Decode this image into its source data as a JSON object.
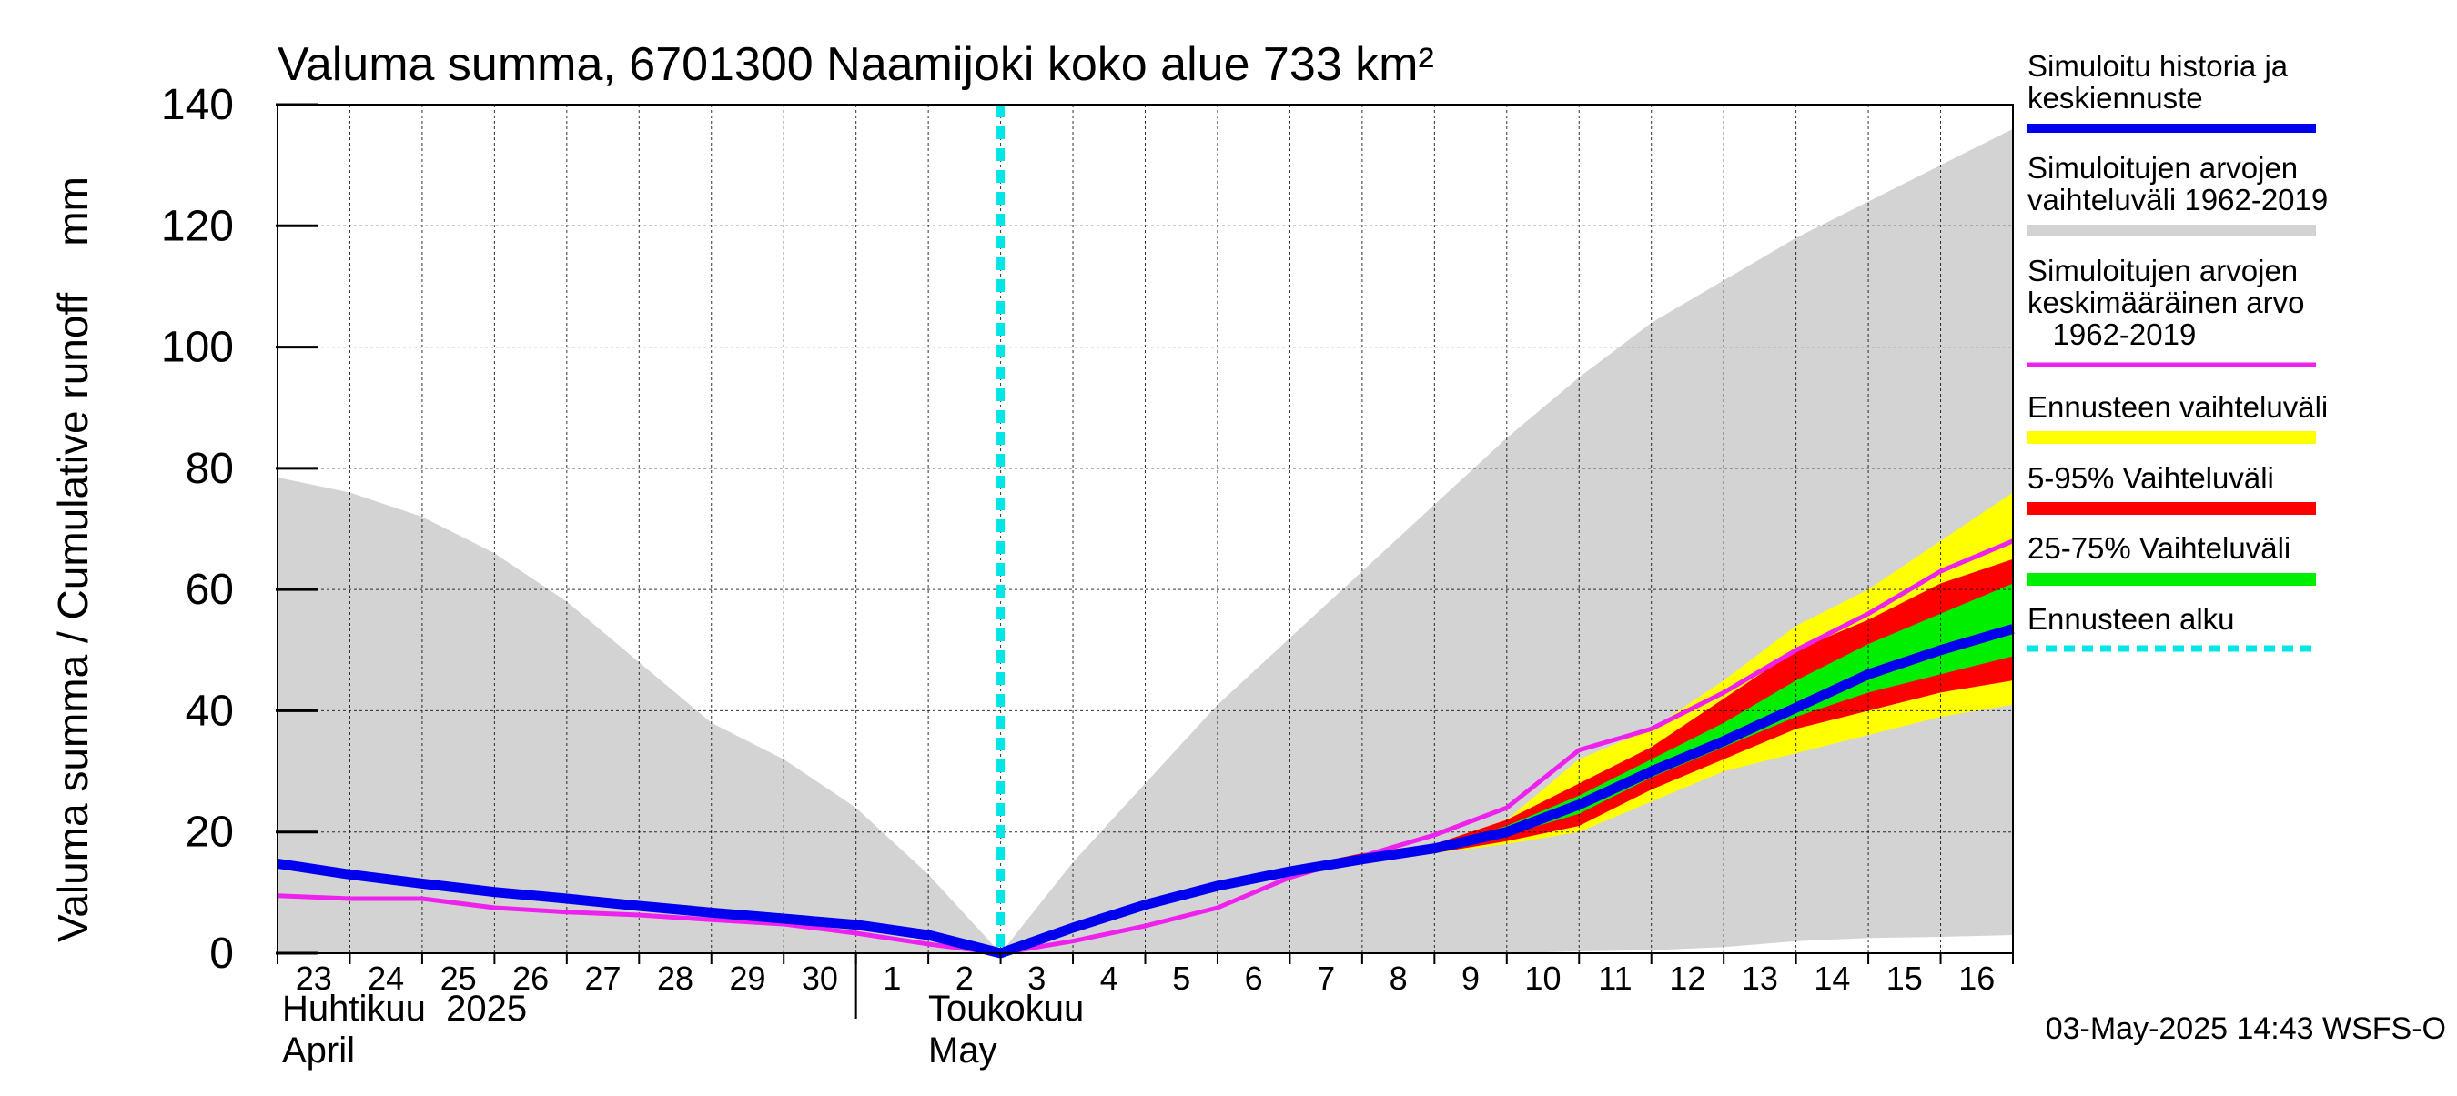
{
  "chart_data": {
    "type": "area",
    "title": "Valuma summa, 6701300 Naamijoki koko alue 733 km²",
    "ylabel": "Valuma summa / Cumulative runoff    mm",
    "ylim": [
      0,
      140
    ],
    "yticks": [
      0,
      20,
      40,
      60,
      80,
      100,
      120,
      140
    ],
    "xlim": [
      0,
      24
    ],
    "x_tick_labels": [
      "23",
      "24",
      "25",
      "26",
      "27",
      "28",
      "29",
      "30",
      "1",
      "2",
      "3",
      "4",
      "5",
      "6",
      "7",
      "8",
      "9",
      "10",
      "11",
      "12",
      "13",
      "14",
      "15",
      "16"
    ],
    "month_labels": [
      {
        "fi": "Huhtikuu  2025",
        "en": "April"
      },
      {
        "fi": "Toukokuu",
        "en": "May"
      }
    ],
    "month_boundary_day_index": 8,
    "forecast_start_day_index": 10,
    "grid": true,
    "legend_position": "right",
    "legend": [
      {
        "key": "history",
        "label": "Simuloitu historia ja keskiennuste",
        "color": "#0000ee"
      },
      {
        "key": "hist_range",
        "label": "Simuloitujen arvojen vaihteluväli 1962-2019",
        "color": "#d3d3d3"
      },
      {
        "key": "hist_mean",
        "label": "Simuloitujen arvojen keskimääräinen arvo    1962-2019",
        "color": "#ee22ee"
      },
      {
        "key": "fc_range",
        "label": "Ennusteen vaihteluväli",
        "color": "#ffff00"
      },
      {
        "key": "fc_5_95",
        "label": "5-95% Vaihteluväli",
        "color": "#ff0000"
      },
      {
        "key": "fc_25_75",
        "label": "25-75% Vaihteluväli",
        "color": "#00ee00"
      },
      {
        "key": "fc_start",
        "label": "Ennusteen alku",
        "color": "#00e5e5"
      }
    ],
    "series": [
      {
        "name": "hist_range_upper",
        "x": [
          0,
          1,
          2,
          3,
          4,
          5,
          6,
          7,
          8,
          9,
          10,
          11,
          12,
          13,
          14,
          15,
          16,
          17,
          18,
          19,
          20,
          21,
          22,
          23,
          24
        ],
        "values": [
          78.5,
          76,
          72,
          66,
          58,
          48,
          38,
          32,
          24,
          13,
          0,
          15,
          28,
          41,
          52,
          63,
          74,
          85,
          95,
          104,
          111,
          118,
          124,
          130,
          136
        ]
      },
      {
        "name": "hist_range_lower",
        "x": [
          0,
          10,
          17,
          18,
          19,
          20,
          21,
          22,
          23,
          24
        ],
        "values": [
          0,
          0,
          0,
          0.3,
          0.5,
          1,
          2,
          2.5,
          2.7,
          3
        ]
      },
      {
        "name": "fc_range_upper",
        "x": [
          10,
          11,
          12,
          13,
          14,
          15,
          16,
          17,
          18,
          19,
          20,
          21,
          22,
          23,
          24
        ],
        "values": [
          0,
          4,
          8,
          11,
          14,
          16,
          18,
          22,
          32,
          37,
          45,
          54,
          60,
          68,
          76
        ]
      },
      {
        "name": "fc_range_lower",
        "x": [
          10,
          11,
          12,
          13,
          14,
          15,
          16,
          17,
          18,
          19,
          20,
          21,
          22,
          23,
          24
        ],
        "values": [
          0,
          3.5,
          7.5,
          10.5,
          13,
          15,
          16.5,
          18,
          20,
          25,
          30,
          33,
          36,
          39,
          41
        ]
      },
      {
        "name": "fc_5_95_upper",
        "x": [
          10,
          11,
          12,
          13,
          14,
          15,
          16,
          17,
          18,
          19,
          20,
          21,
          22,
          23,
          24
        ],
        "values": [
          0,
          4,
          8,
          11.5,
          14,
          16.5,
          18,
          22,
          28,
          34,
          42,
          50,
          55,
          61,
          65
        ]
      },
      {
        "name": "fc_5_95_lower",
        "x": [
          10,
          11,
          12,
          13,
          14,
          15,
          16,
          17,
          18,
          19,
          20,
          21,
          22,
          23,
          24
        ],
        "values": [
          0,
          3.5,
          7.5,
          10.5,
          13,
          15,
          16.5,
          18.5,
          21,
          27,
          32,
          37,
          40,
          43,
          45
        ]
      },
      {
        "name": "fc_25_75_upper",
        "x": [
          10,
          11,
          12,
          13,
          14,
          15,
          16,
          17,
          18,
          19,
          20,
          21,
          22,
          23,
          24
        ],
        "values": [
          0,
          4,
          8,
          11,
          13.5,
          15.5,
          17.5,
          21,
          26,
          32,
          38,
          45,
          51,
          56,
          61
        ]
      },
      {
        "name": "fc_25_75_lower",
        "x": [
          10,
          11,
          12,
          13,
          14,
          15,
          16,
          17,
          18,
          19,
          20,
          21,
          22,
          23,
          24
        ],
        "values": [
          0,
          3.8,
          7.8,
          10.8,
          13.2,
          15.3,
          17,
          19.5,
          23,
          29,
          34,
          39,
          43,
          46,
          49
        ]
      },
      {
        "name": "hist_mean",
        "x": [
          0,
          1,
          2,
          3,
          4,
          5,
          6,
          7,
          8,
          9,
          10,
          11,
          12,
          13,
          14,
          15,
          16,
          17,
          18,
          19,
          20,
          21,
          22,
          23,
          24
        ],
        "values": [
          9.5,
          9,
          9,
          7.5,
          6.8,
          6.3,
          5.5,
          4.8,
          3.3,
          1.5,
          0,
          2,
          4.5,
          7.5,
          12.5,
          16,
          19.5,
          24,
          33.5,
          37,
          43,
          50,
          56,
          63,
          68
        ]
      },
      {
        "name": "history_mean_forecast",
        "x": [
          0,
          1,
          2,
          3,
          4,
          5,
          6,
          7,
          8,
          9,
          10,
          11,
          12,
          13,
          14,
          15,
          16,
          17,
          18,
          19,
          20,
          21,
          22,
          23,
          24
        ],
        "values": [
          14.8,
          13,
          11.5,
          10.1,
          9,
          7.8,
          6.7,
          5.7,
          4.7,
          3.0,
          0,
          4.2,
          8,
          11.1,
          13.5,
          15.5,
          17.3,
          20,
          24.5,
          30,
          35,
          40.5,
          46,
          50,
          53.5
        ]
      }
    ]
  },
  "timestamp": "03-May-2025 14:43 WSFS-O"
}
